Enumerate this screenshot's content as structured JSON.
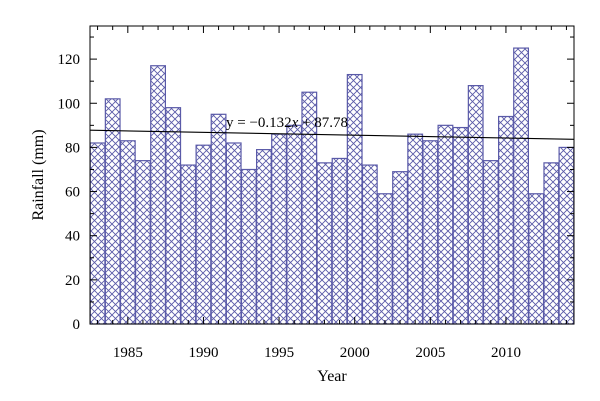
{
  "chart_data": {
    "type": "bar",
    "xlabel": "Year",
    "ylabel": "Rainfall (mm)",
    "xlim": [
      1982.5,
      2014.5
    ],
    "ylim": [
      0,
      135
    ],
    "x_ticks": [
      1985,
      1990,
      1995,
      2000,
      2005,
      2010
    ],
    "y_ticks": [
      0,
      20,
      40,
      60,
      80,
      100,
      120
    ],
    "grid": false,
    "bar_color": "#5a5aa8",
    "bar_fill": "crosshatch",
    "x": [
      1983,
      1984,
      1985,
      1986,
      1987,
      1988,
      1989,
      1990,
      1991,
      1992,
      1993,
      1994,
      1995,
      1996,
      1997,
      1998,
      1999,
      2000,
      2001,
      2002,
      2003,
      2004,
      2005,
      2006,
      2007,
      2008,
      2009,
      2010,
      2011,
      2012,
      2013,
      2014
    ],
    "values": [
      82,
      102,
      83,
      74,
      117,
      98,
      72,
      81,
      95,
      82,
      70,
      79,
      86,
      90,
      105,
      73,
      75,
      113,
      72,
      59,
      69,
      86,
      83,
      90,
      89,
      108,
      74,
      94,
      125,
      59,
      73,
      80
    ],
    "trendline": {
      "label_prefix": "y = −0.132",
      "label_var": "x",
      "label_suffix": " + 87.78",
      "x_range": [
        1983,
        2014
      ],
      "y_start": 87.78,
      "slope": -0.132,
      "color": "#000000"
    }
  }
}
